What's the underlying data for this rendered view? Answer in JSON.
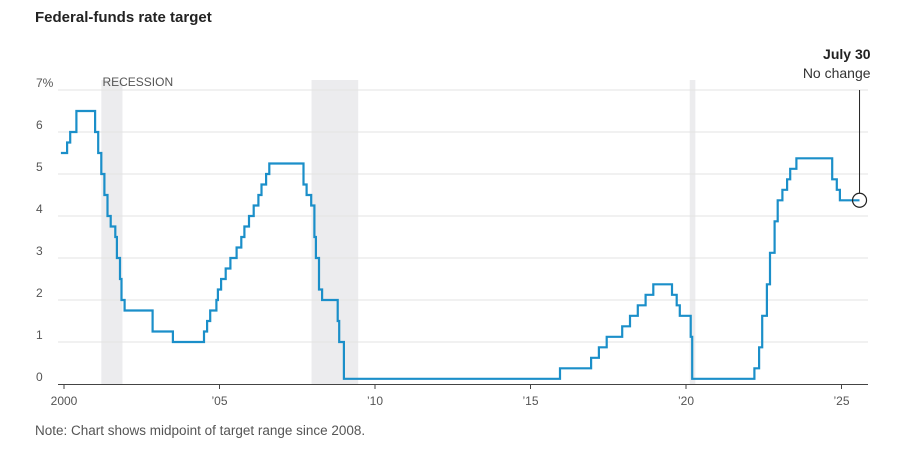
{
  "title": "Federal-funds rate target",
  "note": "Note: Chart shows midpoint of target range since 2008.",
  "chart_data": {
    "type": "line",
    "title": "Federal-funds rate target",
    "xlabel": "",
    "ylabel": "",
    "xlim": [
      1999.5,
      2026
    ],
    "ylim": [
      0,
      7
    ],
    "y_ticks": [
      0,
      1,
      2,
      3,
      4,
      5,
      6,
      7
    ],
    "y_tick_labels": [
      "0",
      "1",
      "2",
      "3",
      "4",
      "5",
      "6",
      "7%"
    ],
    "x_ticks": [
      2000,
      2005,
      2010,
      2015,
      2020,
      2025
    ],
    "x_tick_labels": [
      "2000",
      "’05",
      "’10",
      "’15",
      "’20",
      "’25"
    ],
    "grid": true,
    "line_color": "#1b8fc9",
    "recession_color": "#ececee",
    "recession_label": "RECESSION",
    "recessions": [
      [
        2001.2,
        2001.88
      ],
      [
        2007.96,
        2009.46
      ],
      [
        2020.12,
        2020.3
      ]
    ],
    "annotation": {
      "title": "July 30",
      "subtitle": "No change",
      "x": 2025.58,
      "y": 4.375
    },
    "series": [
      {
        "step": true,
        "points": [
          [
            1999.9,
            5.5
          ],
          [
            2000.1,
            5.75
          ],
          [
            2000.2,
            6.0
          ],
          [
            2000.4,
            6.5
          ],
          [
            2001.0,
            6.0
          ],
          [
            2001.1,
            5.5
          ],
          [
            2001.2,
            5.0
          ],
          [
            2001.3,
            4.5
          ],
          [
            2001.4,
            4.0
          ],
          [
            2001.5,
            3.75
          ],
          [
            2001.65,
            3.5
          ],
          [
            2001.7,
            3.0
          ],
          [
            2001.8,
            2.5
          ],
          [
            2001.85,
            2.0
          ],
          [
            2001.95,
            1.75
          ],
          [
            2002.85,
            1.25
          ],
          [
            2003.5,
            1.0
          ],
          [
            2004.5,
            1.25
          ],
          [
            2004.6,
            1.5
          ],
          [
            2004.7,
            1.75
          ],
          [
            2004.9,
            2.0
          ],
          [
            2004.95,
            2.25
          ],
          [
            2005.05,
            2.5
          ],
          [
            2005.2,
            2.75
          ],
          [
            2005.35,
            3.0
          ],
          [
            2005.55,
            3.25
          ],
          [
            2005.7,
            3.5
          ],
          [
            2005.8,
            3.75
          ],
          [
            2005.95,
            4.0
          ],
          [
            2006.1,
            4.25
          ],
          [
            2006.25,
            4.5
          ],
          [
            2006.35,
            4.75
          ],
          [
            2006.5,
            5.0
          ],
          [
            2006.6,
            5.25
          ],
          [
            2007.7,
            4.75
          ],
          [
            2007.8,
            4.5
          ],
          [
            2007.95,
            4.25
          ],
          [
            2008.05,
            3.5
          ],
          [
            2008.1,
            3.0
          ],
          [
            2008.2,
            2.25
          ],
          [
            2008.3,
            2.0
          ],
          [
            2008.8,
            1.5
          ],
          [
            2008.85,
            1.0
          ],
          [
            2009.0,
            0.125
          ],
          [
            2015.95,
            0.375
          ],
          [
            2016.95,
            0.625
          ],
          [
            2017.2,
            0.875
          ],
          [
            2017.45,
            1.125
          ],
          [
            2017.95,
            1.375
          ],
          [
            2018.2,
            1.625
          ],
          [
            2018.45,
            1.875
          ],
          [
            2018.7,
            2.125
          ],
          [
            2018.95,
            2.375
          ],
          [
            2019.55,
            2.125
          ],
          [
            2019.7,
            1.875
          ],
          [
            2019.8,
            1.625
          ],
          [
            2020.15,
            1.125
          ],
          [
            2020.2,
            0.125
          ],
          [
            2022.2,
            0.375
          ],
          [
            2022.35,
            0.875
          ],
          [
            2022.45,
            1.625
          ],
          [
            2022.6,
            2.375
          ],
          [
            2022.7,
            3.125
          ],
          [
            2022.85,
            3.875
          ],
          [
            2022.95,
            4.375
          ],
          [
            2023.1,
            4.625
          ],
          [
            2023.25,
            4.875
          ],
          [
            2023.35,
            5.125
          ],
          [
            2023.55,
            5.375
          ],
          [
            2024.7,
            4.875
          ],
          [
            2024.85,
            4.625
          ],
          [
            2024.95,
            4.375
          ],
          [
            2025.58,
            4.375
          ]
        ]
      }
    ]
  }
}
